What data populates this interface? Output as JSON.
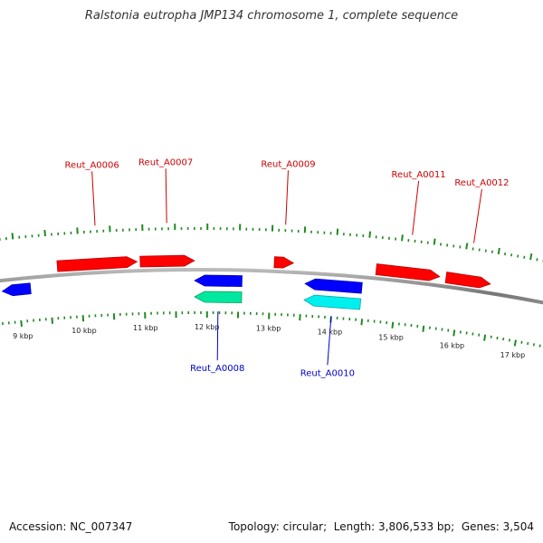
{
  "title": "Ralstonia eutropha JMP134 chromosome 1, complete sequence",
  "footer": {
    "accession_label": "Accession:",
    "accession": "NC_007347",
    "topology_label": "Topology:",
    "topology": "circular",
    "length_label": "Length:",
    "length": "3,806,533 bp",
    "genes_label": "Genes:",
    "genes": "3,504"
  },
  "colors": {
    "forward_gene": "#ff0000",
    "reverse_gene": "#0000ff",
    "reverse_gene_alt": "#00e8a0",
    "reverse_gene_alt2": "#00f0f0",
    "tick": "#228822",
    "backbone": "#888888",
    "forward_label": "#cc0000",
    "reverse_label": "#0000cc"
  },
  "scale_labels": [
    "9 kbp",
    "10 kbp",
    "11 kbp",
    "12 kbp",
    "13 kbp",
    "14 kbp",
    "15 kbp",
    "16 kbp",
    "17 kbp"
  ],
  "scale_kbp": [
    9,
    10,
    11,
    12,
    13,
    14,
    15,
    16,
    17
  ],
  "forward_genes": [
    {
      "label": "Reut_A0006",
      "start_kbp": 9.65,
      "end_kbp": 10.9,
      "labeled": true
    },
    {
      "label": "Reut_A0007",
      "start_kbp": 10.95,
      "end_kbp": 11.8,
      "labeled": true
    },
    {
      "label": "Reut_A0009",
      "start_kbp": 13.05,
      "end_kbp": 13.35,
      "labeled": true
    },
    {
      "label": "Reut_A0011",
      "start_kbp": 14.65,
      "end_kbp": 15.65,
      "labeled": true
    },
    {
      "label": "Reut_A0012",
      "start_kbp": 15.75,
      "end_kbp": 16.45,
      "labeled": true
    }
  ],
  "reverse_genes": [
    {
      "label": "",
      "start_kbp": 8.75,
      "end_kbp": 9.2,
      "lane": 0,
      "color": "#0000ff",
      "labeled": false
    },
    {
      "label": "",
      "start_kbp": 11.8,
      "end_kbp": 12.55,
      "lane": 0,
      "color": "#0000ff",
      "labeled": false
    },
    {
      "label": "Reut_A0008",
      "start_kbp": 11.8,
      "end_kbp": 12.55,
      "lane": 1,
      "color": "#00e8a0",
      "labeled": true
    },
    {
      "label": "",
      "start_kbp": 13.55,
      "end_kbp": 14.45,
      "lane": 0,
      "color": "#0000ff",
      "labeled": false
    },
    {
      "label": "Reut_A0010",
      "start_kbp": 13.55,
      "end_kbp": 14.45,
      "lane": 1,
      "color": "#00f0f0",
      "labeled": true
    }
  ]
}
